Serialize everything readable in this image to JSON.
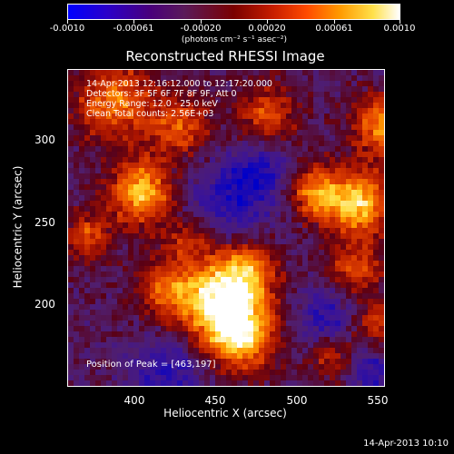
{
  "colorbar": {
    "ticks": [
      "-0.0010",
      "-0.00061",
      "-0.00020",
      "0.00020",
      "0.00061",
      "0.0010"
    ],
    "units": "(photons cm⁻² s⁻¹ asec⁻²)"
  },
  "title": "Reconstructed RHESSI Image",
  "info": {
    "time_range": "14-Apr-2013 12:16:12.000 to 12:17:20.000",
    "detectors": "Detectors: 3F 5F 6F 7F 8F 9F, Att 0",
    "energy": "Energy Range: 12.0 - 25.0 keV",
    "clean": "Clean    Total counts: 2.56E+03"
  },
  "peak": "Position of Peak = [463,197]",
  "x_axis": {
    "label": "Heliocentric X (arcsec)",
    "ticks": [
      "400",
      "450",
      "500",
      "550"
    ]
  },
  "y_axis": {
    "label": "Heliocentric Y (arcsec)",
    "ticks": [
      "300",
      "250",
      "200"
    ]
  },
  "timestamp": "14-Apr-2013 10:10",
  "chart_data": {
    "type": "heatmap",
    "title": "Reconstructed RHESSI Image",
    "xlabel": "Heliocentric X (arcsec)",
    "ylabel": "Heliocentric Y (arcsec)",
    "xlim": [
      358,
      552
    ],
    "ylim": [
      148,
      342
    ],
    "colorbar_range": [
      -0.001,
      0.001
    ],
    "peak_position": [
      463,
      197
    ]
  }
}
